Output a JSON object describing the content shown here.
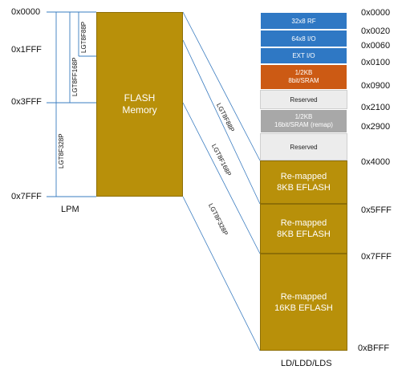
{
  "left_addresses": [
    "0x0000",
    "0x1FFF",
    "0x3FFF",
    "0x7FFF"
  ],
  "left_size_labels": [
    "LGT8F88P",
    "LGT8FF168P",
    "LGT8F328P"
  ],
  "flash_block": {
    "line1": "FLASH",
    "line2": "Memory",
    "color": "#b8900a"
  },
  "lpm_label": "LPM",
  "diagonal_labels": [
    "LGT8F88P",
    "LGT8F168P",
    "LGT8F328P"
  ],
  "memory_map": {
    "regions": [
      {
        "line1": "32x8 RF",
        "line2": "",
        "color": "#2f78c4"
      },
      {
        "line1": "64x8 I/O",
        "line2": "",
        "color": "#2f78c4"
      },
      {
        "line1": "EXT I/O",
        "line2": "",
        "color": "#2f78c4"
      },
      {
        "line1": "1/2KB",
        "line2": "8bit/SRAM",
        "color": "#cc5a14"
      },
      {
        "line1": "Reserved",
        "line2": "",
        "color": "#ececec"
      },
      {
        "line1": "1/2KB",
        "line2": "16bit/SRAM (remap)",
        "color": "#a8a8a8"
      },
      {
        "line1": "Reserved",
        "line2": "",
        "color": "#ececec"
      },
      {
        "line1": "Re-mapped",
        "line2": "8KB EFLASH",
        "color": "#b8900a"
      },
      {
        "line1": "Re-mapped",
        "line2": "8KB EFLASH",
        "color": "#b8900a"
      },
      {
        "line1": "Re-mapped",
        "line2": "16KB EFLASH",
        "color": "#b8900a"
      }
    ],
    "addresses": [
      "0x0000",
      "0x0020",
      "0x0060",
      "0x0100",
      "0x0900",
      "0x2100",
      "0x2900",
      "0x4000",
      "0x5FFF",
      "0x7FFF",
      "0xBFFF"
    ],
    "bottom_label": "LD/LDD/LDS"
  }
}
